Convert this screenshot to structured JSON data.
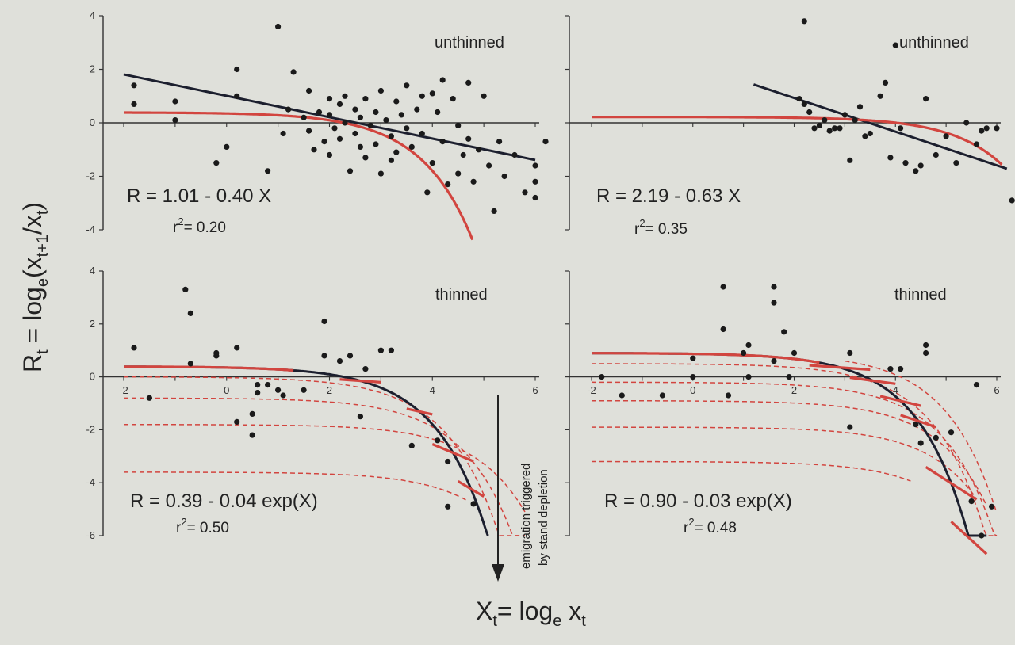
{
  "colors": {
    "background": "#dfe0da",
    "axis": "#333333",
    "points": "#1a1a1a",
    "black_fit": "#1c1f2e",
    "red_fit": "#d2453f"
  },
  "axis_titles": {
    "y_main": "R",
    "y_sub": "t",
    "y_eq": " = log",
    "y_e": "e",
    "y_paren": "(x",
    "y_sub2": "t+1",
    "y_div": "/x",
    "y_sub3": "t",
    "y_close": ")",
    "x_main": "X",
    "x_sub": "t",
    "x_eq": "= log",
    "x_e": "e",
    "x_var": " x",
    "x_sub2": "t"
  },
  "annotation": {
    "line1": "emigration triggered",
    "line2": "by stand depletion"
  },
  "chart_data": [
    {
      "type": "scatter",
      "panel": "top-left",
      "label": "unthinned",
      "equation": "R = 1.01 - 0.40 X",
      "r2_text": "= 0.20",
      "xlim": [
        -2.5,
        6.3
      ],
      "ylim": [
        -4,
        4
      ],
      "y_ticks": [
        "4",
        "2",
        "0",
        "-2",
        "-4"
      ],
      "x_ticks": [],
      "linear_fit": {
        "intercept": 1.01,
        "slope": -0.4,
        "x_range": [
          -2.0,
          6.0
        ]
      },
      "red_curve": {
        "type": "exp",
        "a": 0.39,
        "b": 0.04,
        "x_range": [
          -2.0,
          4.8
        ]
      },
      "points": [
        [
          -1.8,
          1.4
        ],
        [
          -1.8,
          0.7
        ],
        [
          -1.0,
          0.8
        ],
        [
          -1.0,
          0.1
        ],
        [
          0.2,
          2.0
        ],
        [
          0.2,
          1.0
        ],
        [
          -0.2,
          -1.5
        ],
        [
          0.0,
          -0.9
        ],
        [
          1.0,
          3.6
        ],
        [
          0.8,
          -1.8
        ],
        [
          1.2,
          0.5
        ],
        [
          1.3,
          1.9
        ],
        [
          1.5,
          0.2
        ],
        [
          1.6,
          -0.3
        ],
        [
          1.6,
          1.2
        ],
        [
          1.7,
          -1.0
        ],
        [
          1.8,
          0.4
        ],
        [
          1.9,
          -0.7
        ],
        [
          2.0,
          0.9
        ],
        [
          2.0,
          0.3
        ],
        [
          2.0,
          -1.2
        ],
        [
          2.1,
          -0.2
        ],
        [
          2.2,
          0.7
        ],
        [
          2.2,
          -0.6
        ],
        [
          2.3,
          1.0
        ],
        [
          2.3,
          0.0
        ],
        [
          2.4,
          -1.8
        ],
        [
          2.5,
          0.5
        ],
        [
          2.5,
          -0.4
        ],
        [
          2.6,
          0.2
        ],
        [
          2.7,
          0.9
        ],
        [
          2.7,
          -1.3
        ],
        [
          2.8,
          -0.1
        ],
        [
          2.9,
          0.4
        ],
        [
          2.9,
          -0.8
        ],
        [
          3.0,
          1.2
        ],
        [
          3.0,
          -1.9
        ],
        [
          3.1,
          0.1
        ],
        [
          3.2,
          -0.5
        ],
        [
          3.3,
          0.8
        ],
        [
          3.3,
          -1.1
        ],
        [
          3.4,
          0.3
        ],
        [
          3.5,
          -0.2
        ],
        [
          3.5,
          1.4
        ],
        [
          3.6,
          -0.9
        ],
        [
          3.7,
          0.5
        ],
        [
          3.8,
          -0.4
        ],
        [
          3.9,
          -2.6
        ],
        [
          4.0,
          1.1
        ],
        [
          4.0,
          -1.5
        ],
        [
          4.1,
          0.4
        ],
        [
          4.2,
          -0.7
        ],
        [
          4.2,
          1.6
        ],
        [
          4.3,
          -2.3
        ],
        [
          4.4,
          0.9
        ],
        [
          4.5,
          -0.1
        ],
        [
          4.5,
          -1.9
        ],
        [
          4.6,
          -1.2
        ],
        [
          4.7,
          1.5
        ],
        [
          4.7,
          -0.6
        ],
        [
          4.8,
          -2.2
        ],
        [
          4.9,
          -1.0
        ],
        [
          5.0,
          1.0
        ],
        [
          5.1,
          -1.6
        ],
        [
          5.2,
          -3.3
        ],
        [
          5.3,
          -0.7
        ],
        [
          5.4,
          -2.0
        ],
        [
          5.6,
          -1.2
        ],
        [
          5.8,
          -2.6
        ],
        [
          6.0,
          -1.6
        ],
        [
          6.0,
          -2.2
        ],
        [
          6.0,
          -2.8
        ],
        [
          6.2,
          -0.7
        ],
        [
          3.8,
          1.0
        ],
        [
          3.2,
          -1.4
        ],
        [
          2.6,
          -0.9
        ],
        [
          1.1,
          -0.4
        ]
      ]
    },
    {
      "type": "scatter",
      "panel": "top-right",
      "label": "unthinned",
      "equation": "R = 2.19 - 0.63 X",
      "r2_text": "= 0.35",
      "xlim": [
        -2.5,
        6.3
      ],
      "ylim": [
        -4,
        4
      ],
      "y_ticks": [],
      "x_ticks": [],
      "linear_fit": {
        "intercept": 2.19,
        "slope": -0.63,
        "x_range": [
          1.2,
          6.2
        ]
      },
      "red_curve": {
        "type": "exp",
        "a": 0.22,
        "b": 0.004,
        "x_range": [
          -2.0,
          6.1
        ]
      },
      "points": [
        [
          2.2,
          3.8
        ],
        [
          2.1,
          0.9
        ],
        [
          2.2,
          0.7
        ],
        [
          2.3,
          0.4
        ],
        [
          2.4,
          -0.2
        ],
        [
          2.5,
          -0.1
        ],
        [
          2.6,
          0.1
        ],
        [
          2.8,
          -0.2
        ],
        [
          2.9,
          -0.2
        ],
        [
          3.0,
          0.3
        ],
        [
          3.1,
          -1.4
        ],
        [
          3.2,
          0.1
        ],
        [
          3.3,
          0.6
        ],
        [
          3.5,
          -0.4
        ],
        [
          3.7,
          1.0
        ],
        [
          3.8,
          1.5
        ],
        [
          3.9,
          -1.3
        ],
        [
          4.0,
          2.9
        ],
        [
          4.1,
          -0.2
        ],
        [
          4.2,
          -1.5
        ],
        [
          4.4,
          -1.8
        ],
        [
          4.5,
          -1.6
        ],
        [
          4.6,
          0.9
        ],
        [
          4.8,
          -1.2
        ],
        [
          5.0,
          -0.5
        ],
        [
          5.2,
          -1.5
        ],
        [
          5.4,
          0.0
        ],
        [
          5.6,
          -0.8
        ],
        [
          5.7,
          -0.3
        ],
        [
          5.8,
          -0.2
        ],
        [
          6.0,
          -0.2
        ],
        [
          6.3,
          -2.9
        ],
        [
          2.7,
          -0.3
        ],
        [
          3.4,
          -0.5
        ]
      ]
    },
    {
      "type": "scatter",
      "panel": "bottom-left",
      "label": "thinned",
      "equation": "R = 0.39 - 0.04 exp(X)",
      "r2_text": "= 0.50",
      "xlim": [
        -2.5,
        6.3
      ],
      "ylim": [
        -6,
        4
      ],
      "y_ticks": [
        "4",
        "2",
        "0",
        "-2",
        "-4",
        "-6"
      ],
      "x_ticks": [
        "-2",
        "0",
        "2",
        "4",
        "6"
      ],
      "exp_fit": {
        "a": 0.39,
        "b": 0.04,
        "x_range": [
          -2.0,
          5.1
        ]
      },
      "red_curve": {
        "type": "exp",
        "a": 0.39,
        "b": 0.04,
        "x_range": [
          -2.0,
          1.3
        ]
      },
      "red_segments": [
        [
          2.2,
          3.0
        ],
        [
          3.5,
          4.0
        ],
        [
          4.0,
          4.8
        ],
        [
          4.5,
          5.0
        ]
      ],
      "dashed_curves": [
        {
          "a": 0.0,
          "b": 0.03,
          "x_range": [
            -2.0,
            5.8
          ]
        },
        {
          "a": -0.8,
          "b": 0.02,
          "x_range": [
            -2.0,
            5.8
          ]
        },
        {
          "a": -1.8,
          "b": 0.01,
          "x_range": [
            -2.0,
            5.8
          ]
        },
        {
          "a": -3.6,
          "b": 0.01,
          "x_range": [
            -2.0,
            4.7
          ]
        }
      ],
      "points": [
        [
          -1.8,
          1.1
        ],
        [
          -1.5,
          -0.8
        ],
        [
          -0.8,
          3.3
        ],
        [
          -0.7,
          2.4
        ],
        [
          -0.7,
          0.5
        ],
        [
          -0.2,
          0.9
        ],
        [
          -0.2,
          0.8
        ],
        [
          0.2,
          1.1
        ],
        [
          0.2,
          -1.7
        ],
        [
          0.5,
          -1.4
        ],
        [
          0.5,
          -2.2
        ],
        [
          0.6,
          -0.3
        ],
        [
          0.6,
          -0.6
        ],
        [
          0.8,
          -0.3
        ],
        [
          1.0,
          -0.5
        ],
        [
          1.1,
          -0.7
        ],
        [
          1.5,
          -0.5
        ],
        [
          1.9,
          0.8
        ],
        [
          1.9,
          2.1
        ],
        [
          2.2,
          0.6
        ],
        [
          2.4,
          0.8
        ],
        [
          2.6,
          -1.5
        ],
        [
          2.7,
          0.3
        ],
        [
          3.0,
          1.0
        ],
        [
          3.2,
          1.0
        ],
        [
          3.6,
          -2.6
        ],
        [
          4.1,
          -2.4
        ],
        [
          4.3,
          -3.2
        ],
        [
          4.3,
          -4.9
        ],
        [
          4.8,
          -4.8
        ]
      ]
    },
    {
      "type": "scatter",
      "panel": "bottom-right",
      "label": "thinned",
      "equation": "R = 0.90 - 0.03 exp(X)",
      "r2_text": "= 0.48",
      "xlim": [
        -2.5,
        6.3
      ],
      "ylim": [
        -6,
        4
      ],
      "y_ticks": [],
      "x_ticks": [
        "-2",
        "0",
        "2",
        "4",
        "6"
      ],
      "exp_fit": {
        "a": 0.9,
        "b": 0.03,
        "x_range": [
          -2.0,
          5.8
        ]
      },
      "red_curve": {
        "type": "exp",
        "a": 0.9,
        "b": 0.03,
        "x_range": [
          -2.0,
          2.5
        ]
      },
      "red_segments": [
        [
          2.3,
          3.5
        ],
        [
          3.1,
          4.0
        ],
        [
          3.7,
          4.5
        ],
        [
          4.1,
          4.8
        ],
        [
          4.6,
          5.6
        ],
        [
          5.1,
          5.8
        ]
      ],
      "dashed_curves": [
        {
          "a": 0.9,
          "b": 0.015,
          "x_range": [
            3.0,
            6.0
          ]
        },
        {
          "a": 0.5,
          "b": 0.02,
          "x_range": [
            -2.0,
            6.0
          ]
        },
        {
          "a": -0.2,
          "b": 0.015,
          "x_range": [
            -2.0,
            6.0
          ]
        },
        {
          "a": -0.9,
          "b": 0.012,
          "x_range": [
            -2.0,
            5.8
          ]
        },
        {
          "a": -1.9,
          "b": 0.01,
          "x_range": [
            -2.0,
            5.6
          ]
        },
        {
          "a": -3.2,
          "b": 0.01,
          "x_range": [
            -2.0,
            4.3
          ]
        }
      ],
      "points": [
        [
          -1.8,
          0.0
        ],
        [
          -1.4,
          -0.7
        ],
        [
          -0.6,
          -0.7
        ],
        [
          0.0,
          0.7
        ],
        [
          0.0,
          0.0
        ],
        [
          0.6,
          3.4
        ],
        [
          0.6,
          1.8
        ],
        [
          0.7,
          -0.7
        ],
        [
          1.0,
          0.9
        ],
        [
          1.1,
          1.2
        ],
        [
          1.1,
          0.0
        ],
        [
          1.6,
          3.4
        ],
        [
          1.6,
          2.8
        ],
        [
          1.6,
          0.6
        ],
        [
          1.8,
          1.7
        ],
        [
          1.9,
          0.0
        ],
        [
          2.0,
          0.9
        ],
        [
          3.1,
          0.9
        ],
        [
          3.1,
          -1.9
        ],
        [
          3.9,
          0.3
        ],
        [
          4.1,
          0.3
        ],
        [
          4.4,
          -1.8
        ],
        [
          4.5,
          -2.5
        ],
        [
          4.6,
          1.2
        ],
        [
          4.6,
          0.9
        ],
        [
          4.8,
          -2.3
        ],
        [
          5.1,
          -2.1
        ],
        [
          5.5,
          -4.7
        ],
        [
          5.7,
          -6.0
        ],
        [
          5.9,
          -4.9
        ],
        [
          5.6,
          -0.3
        ]
      ]
    }
  ]
}
